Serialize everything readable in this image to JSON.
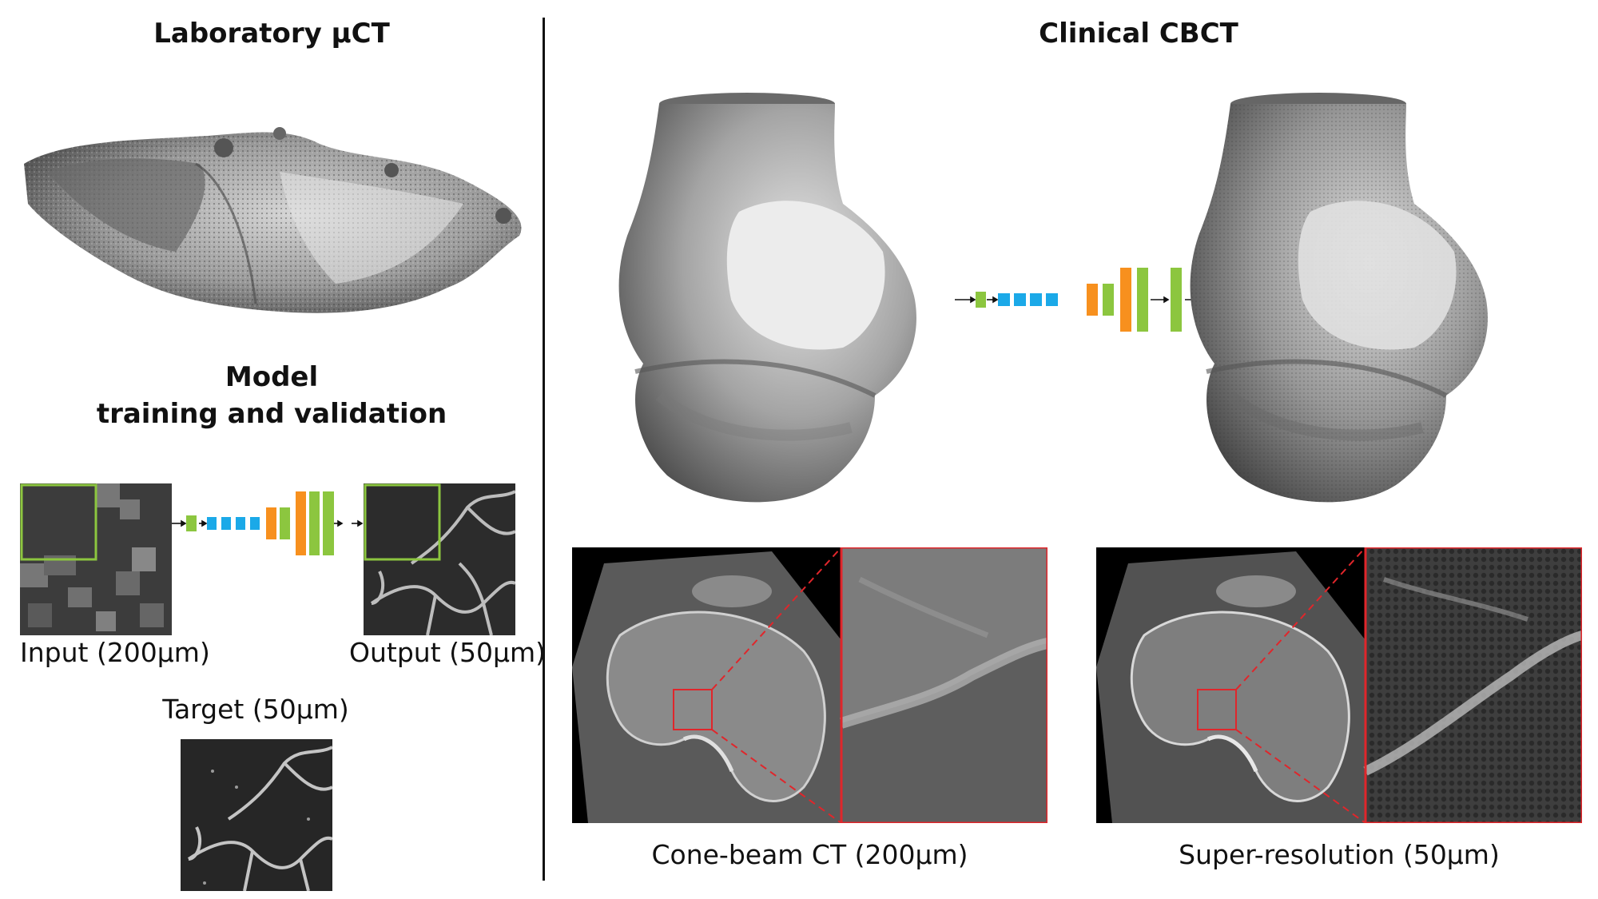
{
  "left": {
    "title": "Laboratory μCT",
    "model_title_line1": "Model",
    "model_title_line2": "training and validation",
    "input_caption": "Input (200μm)",
    "output_caption": "Output (50μm)",
    "target_caption": "Target (50μm)"
  },
  "right": {
    "title": "Clinical CBCT",
    "cbct_caption": "Cone-beam CT (200μm)",
    "sr_caption": "Super-resolution (50μm)"
  },
  "colors": {
    "green": "#8cc63f",
    "blue": "#1ba9e8",
    "orange": "#f7901e",
    "zoom_box": "#e0262b",
    "crop_box": "#8cc63f"
  }
}
